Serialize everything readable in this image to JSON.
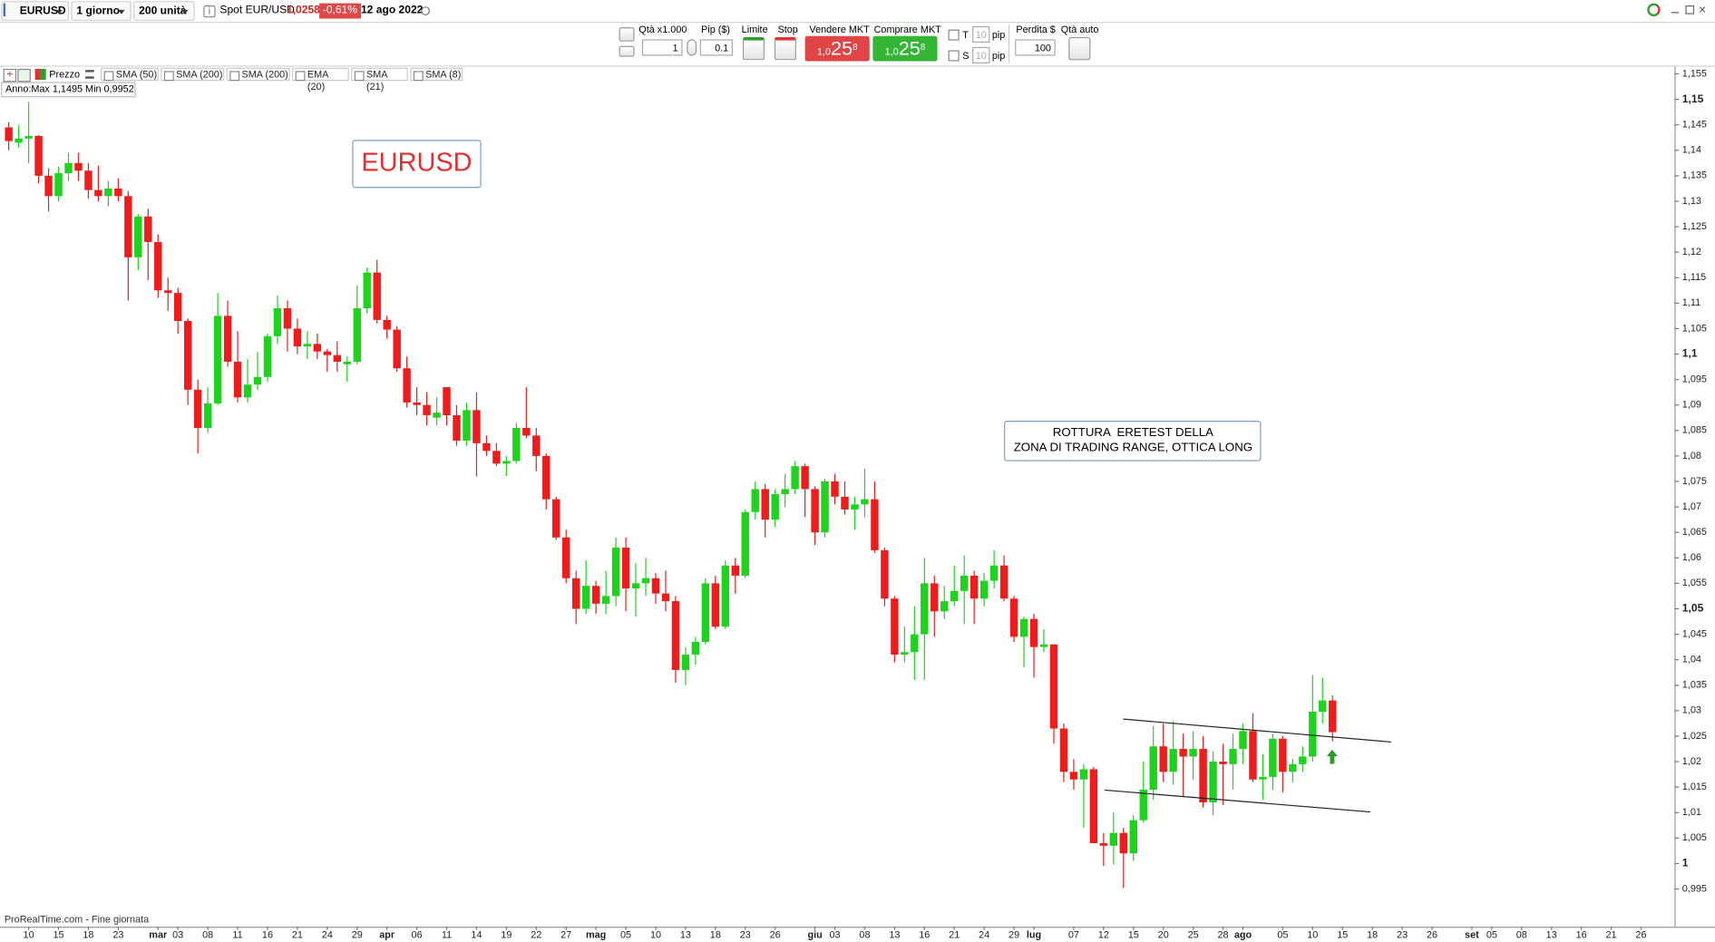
{
  "toolbar": {
    "symbol": "EURUSD",
    "timeframe": "1 giorno",
    "units": "200 unità",
    "spot_label": "Spot EUR/USD",
    "price": "1,0258",
    "change": "-0,61%",
    "date": "12 ago 2022"
  },
  "order_panel": {
    "qty_label": "Qtà x1.000",
    "qty": "1",
    "pip_label": "Pip ($)",
    "pip": "0.1",
    "limit_label": "Limite",
    "stop_label": "Stop",
    "sell_label": "Vendere MKT",
    "sell_price": {
      "prefix": "1,0",
      "big": "25",
      "sup": "8"
    },
    "buy_label": "Comprare MKT",
    "buy_price": {
      "prefix": "1,0",
      "big": "25",
      "sup": "8"
    },
    "t_label": "T",
    "t_value": "10",
    "t_unit": "pip",
    "s_label": "S",
    "s_value": "10",
    "s_unit": "pip",
    "loss_label": "Perdita $",
    "loss": "100",
    "auto_label": "Qtà auto"
  },
  "indicators": [
    "Prezzo",
    "SMA (50)",
    "SMA (200)",
    "SMA (200)",
    "EMA (20)",
    "SMA (21)",
    "SMA (8)"
  ],
  "chart_data": {
    "type": "candlestick",
    "info": "Anno:Max 1,1495 Min 0,9952",
    "source": "ProRealTime.com - Fine giornata",
    "annotations": [
      "EURUSD",
      "ROTTURA  ERETEST DELLA",
      "ZONA DI TRADING RANGE, OTTICA LONG"
    ],
    "up_color": "#1ed31e",
    "down_color": "#ee1c1c",
    "ylim": [
      0.9876,
      1.1562
    ],
    "yticks": [
      {
        "value": 0.995,
        "label": "0,995"
      },
      1,
      {
        "value": 1.005,
        "label": "1,005"
      },
      {
        "value": 1.01,
        "label": "1,01"
      },
      {
        "value": 1.015,
        "label": "1,015"
      },
      {
        "value": 1.02,
        "label": "1,02"
      },
      {
        "value": 1.025,
        "label": "1,025"
      },
      {
        "value": 1.03,
        "label": "1,03"
      },
      {
        "value": 1.035,
        "label": "1,035"
      },
      {
        "value": 1.04,
        "label": "1,04"
      },
      {
        "value": 1.045,
        "label": "1,045"
      },
      {
        "value": 1.05,
        "label": "1,05"
      },
      {
        "value": 1.055,
        "label": "1,055"
      },
      {
        "value": 1.06,
        "label": "1,06"
      },
      {
        "value": 1.065,
        "label": "1,065"
      },
      {
        "value": 1.07,
        "label": "1,07"
      },
      {
        "value": 1.075,
        "label": "1,075"
      },
      {
        "value": 1.08,
        "label": "1,08"
      },
      {
        "value": 1.085,
        "label": "1,085"
      },
      {
        "value": 1.09,
        "label": "1,09"
      },
      {
        "value": 1.095,
        "label": "1,095"
      },
      {
        "value": 1.1,
        "label": "1,1"
      },
      {
        "value": 1.105,
        "label": "1,105"
      },
      {
        "value": 1.11,
        "label": "1,11"
      },
      {
        "value": 1.115,
        "label": "1,115"
      },
      {
        "value": 1.12,
        "label": "1,12"
      },
      {
        "value": 1.125,
        "label": "1,125"
      },
      {
        "value": 1.13,
        "label": "1,13"
      },
      {
        "value": 1.135,
        "label": "1,135"
      },
      {
        "value": 1.14,
        "label": "1,14"
      },
      {
        "value": 1.145,
        "label": "1,145"
      },
      {
        "value": 1.15,
        "label": "1,15"
      },
      {
        "value": 1.155,
        "label": "1,155"
      }
    ],
    "categories": [
      null,
      null,
      "10",
      null,
      null,
      "15",
      null,
      null,
      "18",
      null,
      null,
      "23",
      null,
      null,
      null,
      "mar",
      null,
      "03",
      null,
      null,
      "08",
      null,
      null,
      "11",
      null,
      null,
      "16",
      null,
      null,
      "21",
      null,
      null,
      "24",
      null,
      null,
      "29",
      null,
      null,
      "apr",
      null,
      null,
      "06",
      null,
      null,
      "11",
      null,
      null,
      "14",
      null,
      null,
      "19",
      null,
      null,
      "22",
      null,
      null,
      "27",
      null,
      null,
      "mag",
      null,
      null,
      "05",
      null,
      null,
      "10",
      null,
      null,
      "13",
      null,
      null,
      "18",
      null,
      null,
      "23",
      null,
      null,
      "26",
      null,
      null,
      null,
      "giu",
      null,
      "03",
      null,
      null,
      "08",
      null,
      null,
      "13",
      null,
      null,
      "16",
      null,
      null,
      "21",
      null,
      null,
      "24",
      null,
      null,
      "29",
      null,
      "lug",
      null,
      null,
      null,
      "07",
      null,
      null,
      "12",
      null,
      null,
      "15",
      null,
      null,
      "20",
      null,
      null,
      "25",
      null,
      null,
      "28",
      null,
      "ago",
      null,
      null,
      null,
      "05",
      null,
      null,
      "10",
      null,
      null,
      "15",
      null,
      null,
      "18",
      null,
      null,
      "23",
      null,
      null,
      "26",
      null,
      null,
      null,
      "set",
      null,
      "05",
      null,
      null,
      "08",
      null,
      null,
      "13",
      null,
      null,
      "16",
      null,
      null,
      "21",
      null,
      null,
      "26",
      null,
      null
    ],
    "ohlc": [
      [
        1.1445,
        1.1455,
        1.14,
        1.1418
      ],
      [
        1.1415,
        1.145,
        1.1405,
        1.1423
      ],
      [
        1.1423,
        1.1495,
        1.1375,
        1.1428
      ],
      [
        1.1428,
        1.143,
        1.1335,
        1.135
      ],
      [
        1.135,
        1.1365,
        1.128,
        1.131
      ],
      [
        1.131,
        1.1368,
        1.13,
        1.1355
      ],
      [
        1.1355,
        1.1395,
        1.134,
        1.1375
      ],
      [
        1.1375,
        1.1395,
        1.134,
        1.136
      ],
      [
        1.136,
        1.1375,
        1.1305,
        1.1322
      ],
      [
        1.1322,
        1.137,
        1.13,
        1.131
      ],
      [
        1.131,
        1.134,
        1.129,
        1.1325
      ],
      [
        1.1325,
        1.1345,
        1.13,
        1.131
      ],
      [
        1.131,
        1.132,
        1.1105,
        1.119
      ],
      [
        1.119,
        1.1275,
        1.1165,
        1.127
      ],
      [
        1.127,
        1.1285,
        1.1145,
        1.122
      ],
      [
        1.122,
        1.1235,
        1.111,
        1.1125
      ],
      [
        1.1125,
        1.115,
        1.1085,
        1.112
      ],
      [
        1.112,
        1.113,
        1.104,
        1.1065
      ],
      [
        1.1065,
        1.107,
        1.09,
        1.093
      ],
      [
        1.093,
        1.095,
        1.0805,
        1.0855
      ],
      [
        1.0855,
        1.0935,
        1.0845,
        1.0903
      ],
      [
        1.0903,
        1.112,
        1.09,
        1.1075
      ],
      [
        1.1075,
        1.1105,
        1.0975,
        1.0985
      ],
      [
        1.0985,
        1.1045,
        1.0905,
        1.0915
      ],
      [
        1.0915,
        1.099,
        1.0905,
        1.094
      ],
      [
        1.094,
        1.1005,
        1.093,
        1.0955
      ],
      [
        1.0955,
        1.104,
        1.0945,
        1.1035
      ],
      [
        1.1035,
        1.1115,
        1.102,
        1.109
      ],
      [
        1.109,
        1.1105,
        1.1005,
        1.105
      ],
      [
        1.105,
        1.107,
        1.1,
        1.1015
      ],
      [
        1.1015,
        1.1045,
        1.099,
        1.102
      ],
      [
        1.102,
        1.104,
        1.099,
        1.1005
      ],
      [
        1.1005,
        1.101,
        1.0965,
        1.0998
      ],
      [
        1.0998,
        1.1025,
        1.0965,
        1.0985
      ],
      [
        1.098,
        1.0995,
        1.0945,
        1.0985
      ],
      [
        1.0985,
        1.1135,
        1.098,
        1.109
      ],
      [
        1.109,
        1.117,
        1.108,
        1.116
      ],
      [
        1.116,
        1.1185,
        1.106,
        1.1067
      ],
      [
        1.1067,
        1.1075,
        1.103,
        1.1048
      ],
      [
        1.1048,
        1.1055,
        1.0965,
        1.0972
      ],
      [
        1.0972,
        1.0995,
        1.0895,
        1.0905
      ],
      [
        1.0905,
        1.0935,
        1.088,
        1.09
      ],
      [
        1.09,
        1.0925,
        1.086,
        1.088
      ],
      [
        1.0875,
        1.0915,
        1.086,
        1.0885
      ],
      [
        1.0935,
        1.0935,
        1.086,
        1.088
      ],
      [
        1.088,
        1.09,
        1.082,
        1.083
      ],
      [
        1.083,
        1.0905,
        1.082,
        1.089
      ],
      [
        1.089,
        1.0925,
        1.076,
        1.0825
      ],
      [
        1.0825,
        1.084,
        1.08,
        1.081
      ],
      [
        1.081,
        1.0825,
        1.078,
        1.0785
      ],
      [
        1.0785,
        1.08,
        1.076,
        1.079
      ],
      [
        1.079,
        1.0865,
        1.0785,
        1.0855
      ],
      [
        1.0855,
        1.0935,
        1.0835,
        1.084
      ],
      [
        1.084,
        1.0855,
        1.077,
        1.08
      ],
      [
        1.08,
        1.0805,
        1.0695,
        1.0715
      ],
      [
        1.0715,
        1.072,
        1.0635,
        1.064
      ],
      [
        1.064,
        1.0655,
        1.055,
        1.056
      ],
      [
        1.056,
        1.0575,
        1.047,
        1.05
      ],
      [
        1.05,
        1.0595,
        1.049,
        1.0545
      ],
      [
        1.0545,
        1.0555,
        1.049,
        1.051
      ],
      [
        1.051,
        1.0575,
        1.049,
        1.0525
      ],
      [
        1.0525,
        1.064,
        1.0505,
        1.062
      ],
      [
        1.062,
        1.064,
        1.0495,
        1.054
      ],
      [
        1.054,
        1.059,
        1.0485,
        1.055
      ],
      [
        1.055,
        1.06,
        1.0525,
        1.056
      ],
      [
        1.056,
        1.057,
        1.051,
        1.053
      ],
      [
        1.053,
        1.0575,
        1.0495,
        1.0515
      ],
      [
        1.0515,
        1.0525,
        1.0355,
        1.038
      ],
      [
        1.038,
        1.0425,
        1.035,
        1.041
      ],
      [
        1.041,
        1.0445,
        1.039,
        1.0435
      ],
      [
        1.0435,
        1.056,
        1.043,
        1.055
      ],
      [
        1.055,
        1.0565,
        1.046,
        1.0465
      ],
      [
        1.0465,
        1.0595,
        1.046,
        1.0585
      ],
      [
        1.0585,
        1.06,
        1.053,
        1.0565
      ],
      [
        1.0565,
        1.0695,
        1.056,
        1.069
      ],
      [
        1.069,
        1.075,
        1.0675,
        1.0735
      ],
      [
        1.0735,
        1.0745,
        1.064,
        1.0675
      ],
      [
        1.0675,
        1.0735,
        1.066,
        1.0725
      ],
      [
        1.0725,
        1.0765,
        1.07,
        1.0735
      ],
      [
        1.0735,
        1.079,
        1.0725,
        1.078
      ],
      [
        1.078,
        1.0785,
        1.068,
        1.0735
      ],
      [
        1.0735,
        1.074,
        1.0625,
        1.065
      ],
      [
        1.065,
        1.0755,
        1.064,
        1.075
      ],
      [
        1.075,
        1.0765,
        1.0705,
        1.072
      ],
      [
        1.072,
        1.075,
        1.0685,
        1.0695
      ],
      [
        1.0695,
        1.072,
        1.0655,
        1.0705
      ],
      [
        1.0705,
        1.0775,
        1.068,
        1.0715
      ],
      [
        1.0715,
        1.075,
        1.061,
        1.0615
      ],
      [
        1.0615,
        1.062,
        1.0505,
        1.052
      ],
      [
        1.052,
        1.0525,
        1.0395,
        1.041
      ],
      [
        1.041,
        1.0465,
        1.0395,
        1.0415
      ],
      [
        1.0415,
        1.0505,
        1.036,
        1.045
      ],
      [
        1.045,
        1.06,
        1.036,
        1.055
      ],
      [
        1.055,
        1.0565,
        1.0445,
        1.0495
      ],
      [
        1.0495,
        1.0545,
        1.048,
        1.0515
      ],
      [
        1.0515,
        1.0585,
        1.0505,
        1.0535
      ],
      [
        1.0535,
        1.0605,
        1.047,
        1.0565
      ],
      [
        1.0565,
        1.0575,
        1.047,
        1.052
      ],
      [
        1.052,
        1.057,
        1.0505,
        1.0555
      ],
      [
        1.0555,
        1.0615,
        1.054,
        1.0585
      ],
      [
        1.0585,
        1.0605,
        1.0515,
        1.052
      ],
      [
        1.052,
        1.0525,
        1.0435,
        1.0445
      ],
      [
        1.0445,
        1.0485,
        1.0385,
        1.048
      ],
      [
        1.048,
        1.049,
        1.0365,
        1.0425
      ],
      [
        1.0425,
        1.046,
        1.0415,
        1.043
      ],
      [
        1.043,
        1.043,
        1.0235,
        1.0265
      ],
      [
        1.0265,
        1.0275,
        1.016,
        1.018
      ],
      [
        1.018,
        1.0205,
        1.0145,
        1.0165
      ],
      [
        1.0165,
        1.0195,
        1.007,
        1.0185
      ],
      [
        1.0185,
        1.019,
        1.004,
        1.004
      ],
      [
        1.004,
        1.006,
        0.9995,
        1.0035
      ],
      [
        1.0035,
        1.01,
        0.9998,
        1.006
      ],
      [
        1.006,
        1.007,
        0.9952,
        1.002
      ],
      [
        1.002,
        1.0095,
        1.0005,
        1.0085
      ],
      [
        1.0085,
        1.02,
        1.008,
        1.0145
      ],
      [
        1.0145,
        1.027,
        1.0125,
        1.023
      ],
      [
        1.023,
        1.0275,
        1.016,
        1.018
      ],
      [
        1.018,
        1.028,
        1.0155,
        1.0225
      ],
      [
        1.0225,
        1.0255,
        1.013,
        1.021
      ],
      [
        1.021,
        1.026,
        1.0165,
        1.0225
      ],
      [
        1.0225,
        1.025,
        1.011,
        1.012
      ],
      [
        1.012,
        1.022,
        1.0095,
        1.02
      ],
      [
        1.02,
        1.0235,
        1.0115,
        1.0195
      ],
      [
        1.0195,
        1.0255,
        1.0145,
        1.0225
      ],
      [
        1.0225,
        1.0275,
        1.0195,
        1.026
      ],
      [
        1.026,
        1.0295,
        1.016,
        1.0165
      ],
      [
        1.0165,
        1.0215,
        1.0125,
        1.017
      ],
      [
        1.017,
        1.0255,
        1.0145,
        1.0245
      ],
      [
        1.0245,
        1.025,
        1.014,
        1.018
      ],
      [
        1.018,
        1.0205,
        1.016,
        1.0195
      ],
      [
        1.0195,
        1.023,
        1.018,
        1.021
      ],
      [
        1.021,
        1.037,
        1.02,
        1.0298
      ],
      [
        1.0298,
        1.0365,
        1.0275,
        1.032
      ],
      [
        1.032,
        1.033,
        1.024,
        1.0258
      ],
      null,
      null,
      null,
      null,
      null,
      null,
      null,
      null,
      null,
      null,
      null,
      null,
      null,
      null,
      null,
      null,
      null,
      null,
      null,
      null,
      null,
      null,
      null,
      null,
      null,
      null,
      null,
      null,
      null,
      null,
      null,
      null,
      null
    ]
  }
}
